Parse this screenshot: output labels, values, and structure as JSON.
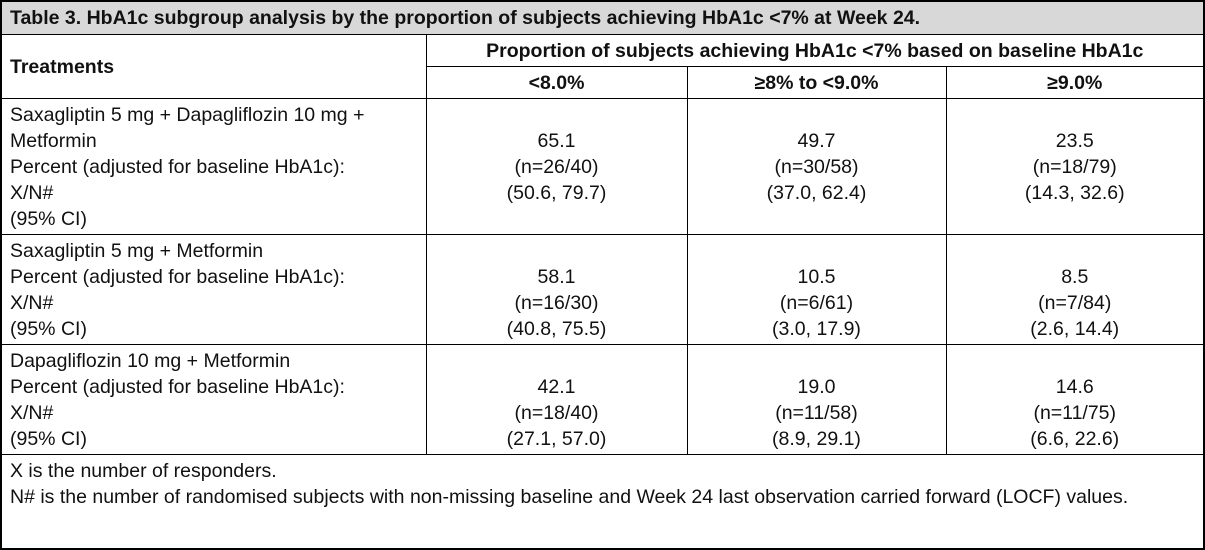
{
  "title": "Table 3. HbA1c subgroup analysis by the proportion of subjects achieving HbA1c <7% at Week 24.",
  "header": {
    "treatments": "Treatments",
    "group": "Proportion of subjects achieving HbA1c <7% based on baseline HbA1c",
    "columns": [
      "<8.0%",
      "≥8% to <9.0%",
      "≥9.0%"
    ]
  },
  "rows": [
    {
      "label_lines": [
        "Saxagliptin 5 mg + Dapagliflozin 10 mg + Metformin",
        "Percent (adjusted for baseline HbA1c):",
        "X/N#",
        "(95% CI)"
      ],
      "cells": [
        {
          "percent": "65.1",
          "n": "(n=26/40)",
          "ci": "(50.6, 79.7)"
        },
        {
          "percent": "49.7",
          "n": "(n=30/58)",
          "ci": "(37.0, 62.4)"
        },
        {
          "percent": "23.5",
          "n": "(n=18/79)",
          "ci": "(14.3, 32.6)"
        }
      ]
    },
    {
      "label_lines": [
        "Saxagliptin 5 mg + Metformin",
        "Percent (adjusted for baseline HbA1c):",
        "X/N#",
        "(95% CI)"
      ],
      "cells": [
        {
          "percent": "58.1",
          "n": "(n=16/30)",
          "ci": "(40.8, 75.5)"
        },
        {
          "percent": "10.5",
          "n": "(n=6/61)",
          "ci": "(3.0, 17.9)"
        },
        {
          "percent": "8.5",
          "n": "(n=7/84)",
          "ci": "(2.6, 14.4)"
        }
      ]
    },
    {
      "label_lines": [
        "Dapagliflozin 10 mg + Metformin",
        "Percent (adjusted for baseline HbA1c):",
        "X/N#",
        "(95% CI)"
      ],
      "cells": [
        {
          "percent": "42.1",
          "n": "(n=18/40)",
          "ci": "(27.1, 57.0)"
        },
        {
          "percent": "19.0",
          "n": "(n=11/58)",
          "ci": "(8.9, 29.1)"
        },
        {
          "percent": "14.6",
          "n": "(n=11/75)",
          "ci": "(6.6, 22.6)"
        }
      ]
    }
  ],
  "footnotes": [
    "X is the number of responders.",
    "N# is the number of randomised subjects with non-missing baseline and Week 24 last observation carried forward (LOCF) values."
  ]
}
